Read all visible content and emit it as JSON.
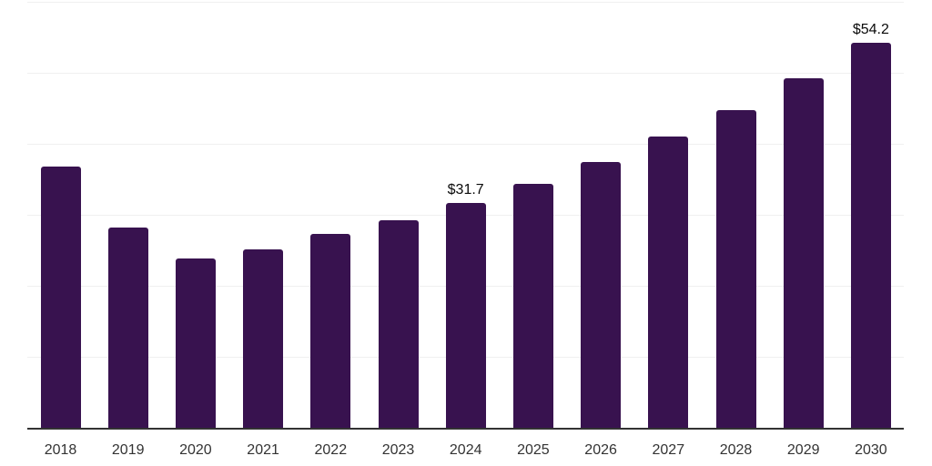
{
  "chart_data": {
    "type": "bar",
    "title": "",
    "xlabel": "",
    "ylabel": "",
    "categories": [
      "2018",
      "2019",
      "2020",
      "2021",
      "2022",
      "2023",
      "2024",
      "2025",
      "2026",
      "2027",
      "2028",
      "2029",
      "2030"
    ],
    "values": [
      36.8,
      28.2,
      23.9,
      25.1,
      27.3,
      29.2,
      31.7,
      34.3,
      37.4,
      41.0,
      44.8,
      49.2,
      54.2
    ],
    "point_labels": [
      {
        "category": "2024",
        "text": "$31.7"
      },
      {
        "category": "2030",
        "text": "$54.2"
      }
    ],
    "ylim": [
      0,
      60
    ],
    "gridline_step": 10,
    "grid": true,
    "legend": false,
    "colors": {
      "bar": "#38124F",
      "axis": "#333333",
      "gridline": "#f0f0f0",
      "tick_label": "#333333",
      "value_label": "#0a0a0a",
      "background": "#ffffff"
    }
  }
}
